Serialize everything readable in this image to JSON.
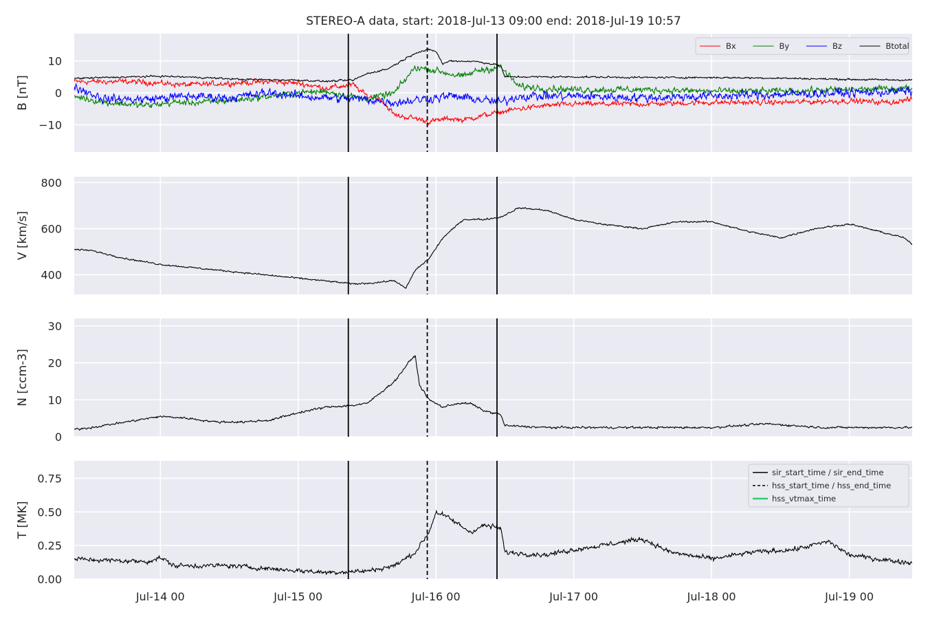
{
  "chart_data": {
    "type": "line",
    "title": "STEREO-A data, start: 2018-Jul-13 09:00  end: 2018-Jul-19 10:57",
    "x_unit": "days since 2018-Jul-13 00:00",
    "xlim": [
      0.375,
      6.456
    ],
    "x_tick_values": [
      1,
      2,
      3,
      4,
      5,
      6
    ],
    "x_tick_labels": [
      "Jul-14 00",
      "Jul-15 00",
      "Jul-16 00",
      "Jul-17 00",
      "Jul-18 00",
      "Jul-19 00"
    ],
    "grid": true,
    "panels": [
      {
        "id": "b",
        "ylabel": "B [nT]",
        "ylim": [
          -18.5,
          18.5
        ],
        "y_ticks": [
          -10,
          0,
          10
        ],
        "y_tick_labels": [
          "−10",
          "0",
          "10"
        ],
        "legend": {
          "placement": "top-right",
          "ncol": 4
        },
        "series": [
          {
            "name": "Bx",
            "color": "#ff0000",
            "noise": 1.2,
            "points": [
              [
                0.375,
                3.5
              ],
              [
                0.8,
                3.5
              ],
              [
                1.2,
                2.5
              ],
              [
                1.5,
                3.0
              ],
              [
                1.8,
                3.5
              ],
              [
                2.0,
                3.0
              ],
              [
                2.2,
                1.5
              ],
              [
                2.4,
                2.5
              ],
              [
                2.5,
                -1.0
              ],
              [
                2.6,
                -2.0
              ],
              [
                2.7,
                -7.0
              ],
              [
                2.85,
                -8.0
              ],
              [
                2.95,
                -9.0
              ],
              [
                3.1,
                -8.0
              ],
              [
                3.2,
                -8.5
              ],
              [
                3.35,
                -7.0
              ],
              [
                3.47,
                -6.0
              ],
              [
                3.6,
                -5.0
              ],
              [
                3.8,
                -4.0
              ],
              [
                4.0,
                -3.5
              ],
              [
                4.5,
                -3.5
              ],
              [
                5.0,
                -3.0
              ],
              [
                5.5,
                -3.0
              ],
              [
                6.0,
                -2.5
              ],
              [
                6.3,
                -3.0
              ],
              [
                6.456,
                -2.0
              ]
            ]
          },
          {
            "name": "By",
            "color": "#008000",
            "noise": 1.5,
            "points": [
              [
                0.375,
                -1.0
              ],
              [
                0.6,
                -3.0
              ],
              [
                0.9,
                -4.0
              ],
              [
                1.1,
                -3.0
              ],
              [
                1.3,
                -3.0
              ],
              [
                1.6,
                -2.0
              ],
              [
                1.9,
                -0.5
              ],
              [
                2.0,
                0.0
              ],
              [
                2.2,
                0.5
              ],
              [
                2.5,
                -2.0
              ],
              [
                2.7,
                0.0
              ],
              [
                2.85,
                8.0
              ],
              [
                3.0,
                7.0
              ],
              [
                3.2,
                5.0
              ],
              [
                3.3,
                7.0
              ],
              [
                3.47,
                8.0
              ],
              [
                3.6,
                2.0
              ],
              [
                4.0,
                1.0
              ],
              [
                4.5,
                1.0
              ],
              [
                5.0,
                0.5
              ],
              [
                5.5,
                0.5
              ],
              [
                6.0,
                1.0
              ],
              [
                6.456,
                1.5
              ]
            ]
          },
          {
            "name": "Bz",
            "color": "#0000ff",
            "noise": 2.0,
            "points": [
              [
                0.375,
                2.0
              ],
              [
                0.6,
                -2.0
              ],
              [
                0.9,
                -2.0
              ],
              [
                1.2,
                -1.0
              ],
              [
                1.5,
                -1.5
              ],
              [
                1.8,
                0.0
              ],
              [
                2.0,
                -1.0
              ],
              [
                2.2,
                -1.5
              ],
              [
                2.5,
                -2.0
              ],
              [
                2.7,
                -3.0
              ],
              [
                2.9,
                -2.0
              ],
              [
                3.1,
                -1.0
              ],
              [
                3.3,
                -2.0
              ],
              [
                3.47,
                -3.0
              ],
              [
                3.6,
                -1.0
              ],
              [
                4.0,
                -1.0
              ],
              [
                4.5,
                -1.5
              ],
              [
                5.0,
                -1.0
              ],
              [
                5.5,
                -0.5
              ],
              [
                6.0,
                0.0
              ],
              [
                6.456,
                0.5
              ]
            ]
          },
          {
            "name": "Btotal",
            "color": "#000000",
            "noise": 0.4,
            "points": [
              [
                0.375,
                4.5
              ],
              [
                0.6,
                4.8
              ],
              [
                1.0,
                5.2
              ],
              [
                1.3,
                4.8
              ],
              [
                1.6,
                4.2
              ],
              [
                2.0,
                4.0
              ],
              [
                2.2,
                3.6
              ],
              [
                2.4,
                4.0
              ],
              [
                2.5,
                6.0
              ],
              [
                2.65,
                7.5
              ],
              [
                2.75,
                10.0
              ],
              [
                2.85,
                12.5
              ],
              [
                2.95,
                13.5
              ],
              [
                3.0,
                13.0
              ],
              [
                3.05,
                9.0
              ],
              [
                3.1,
                10.0
              ],
              [
                3.3,
                9.8
              ],
              [
                3.47,
                8.5
              ],
              [
                3.5,
                5.0
              ],
              [
                4.0,
                5.0
              ],
              [
                4.5,
                4.8
              ],
              [
                5.0,
                4.8
              ],
              [
                5.5,
                4.6
              ],
              [
                6.0,
                4.2
              ],
              [
                6.456,
                4.0
              ]
            ]
          }
        ]
      },
      {
        "id": "v",
        "ylabel": "V [km/s]",
        "ylim": [
          315,
          825
        ],
        "y_ticks": [
          400,
          600,
          800
        ],
        "y_tick_labels": [
          "400",
          "600",
          "800"
        ],
        "series": [
          {
            "name": "V",
            "color": "#000000",
            "noise": 5,
            "points": [
              [
                0.375,
                510
              ],
              [
                0.5,
                505
              ],
              [
                0.75,
                470
              ],
              [
                1.0,
                445
              ],
              [
                1.25,
                430
              ],
              [
                1.5,
                415
              ],
              [
                1.75,
                400
              ],
              [
                2.0,
                385
              ],
              [
                2.25,
                370
              ],
              [
                2.4,
                360
              ],
              [
                2.55,
                365
              ],
              [
                2.7,
                375
              ],
              [
                2.78,
                340
              ],
              [
                2.85,
                420
              ],
              [
                2.95,
                470
              ],
              [
                3.05,
                560
              ],
              [
                3.2,
                640
              ],
              [
                3.35,
                640
              ],
              [
                3.47,
                650
              ],
              [
                3.6,
                690
              ],
              [
                3.8,
                680
              ],
              [
                4.0,
                640
              ],
              [
                4.2,
                620
              ],
              [
                4.5,
                600
              ],
              [
                4.75,
                630
              ],
              [
                5.0,
                630
              ],
              [
                5.25,
                590
              ],
              [
                5.5,
                560
              ],
              [
                5.75,
                600
              ],
              [
                6.0,
                620
              ],
              [
                6.2,
                590
              ],
              [
                6.4,
                560
              ],
              [
                6.456,
                530
              ]
            ]
          }
        ]
      },
      {
        "id": "n",
        "ylabel": "N [ccm-3]",
        "ylim": [
          0,
          32
        ],
        "y_ticks": [
          0,
          10,
          20,
          30
        ],
        "y_tick_labels": [
          "0",
          "10",
          "20",
          "30"
        ],
        "series": [
          {
            "name": "N",
            "color": "#000000",
            "noise": 0.4,
            "points": [
              [
                0.375,
                2.0
              ],
              [
                0.5,
                2.5
              ],
              [
                0.75,
                4.0
              ],
              [
                1.0,
                5.5
              ],
              [
                1.2,
                5.0
              ],
              [
                1.4,
                4.0
              ],
              [
                1.6,
                4.0
              ],
              [
                1.8,
                4.5
              ],
              [
                2.0,
                6.5
              ],
              [
                2.2,
                8.0
              ],
              [
                2.4,
                8.5
              ],
              [
                2.5,
                9.0
              ],
              [
                2.6,
                12.0
              ],
              [
                2.7,
                15.0
              ],
              [
                2.8,
                20.0
              ],
              [
                2.85,
                22.0
              ],
              [
                2.88,
                14.0
              ],
              [
                2.95,
                10.0
              ],
              [
                3.05,
                8.0
              ],
              [
                3.15,
                9.0
              ],
              [
                3.25,
                9.0
              ],
              [
                3.35,
                7.0
              ],
              [
                3.47,
                6.0
              ],
              [
                3.5,
                3.0
              ],
              [
                3.8,
                2.5
              ],
              [
                4.0,
                2.5
              ],
              [
                4.5,
                2.5
              ],
              [
                5.0,
                2.5
              ],
              [
                5.4,
                3.5
              ],
              [
                5.8,
                2.5
              ],
              [
                6.1,
                2.5
              ],
              [
                6.456,
                2.5
              ]
            ]
          }
        ]
      },
      {
        "id": "t",
        "ylabel": "T [MK]",
        "ylim": [
          0,
          0.88
        ],
        "y_ticks": [
          0.0,
          0.25,
          0.5,
          0.75
        ],
        "y_tick_labels": [
          "0.00",
          "0.25",
          "0.50",
          "0.75"
        ],
        "legend": {
          "placement": "top-right",
          "entries": [
            {
              "label": "sir_start_time / sir_end_time",
              "color": "#000000",
              "dash": "solid"
            },
            {
              "label": "hss_start_time / hss_end_time",
              "color": "#000000",
              "dash": "dashed"
            },
            {
              "label": "hss_vtmax_time",
              "color": "#2ecc71",
              "dash": "solid"
            }
          ]
        },
        "series": [
          {
            "name": "T",
            "color": "#000000",
            "noise": 0.025,
            "points": [
              [
                0.375,
                0.15
              ],
              [
                0.6,
                0.14
              ],
              [
                0.9,
                0.13
              ],
              [
                1.0,
                0.16
              ],
              [
                1.1,
                0.1
              ],
              [
                1.5,
                0.1
              ],
              [
                1.9,
                0.07
              ],
              [
                2.2,
                0.05
              ],
              [
                2.5,
                0.06
              ],
              [
                2.7,
                0.1
              ],
              [
                2.85,
                0.2
              ],
              [
                2.95,
                0.35
              ],
              [
                3.0,
                0.5
              ],
              [
                3.1,
                0.45
              ],
              [
                3.25,
                0.35
              ],
              [
                3.35,
                0.4
              ],
              [
                3.47,
                0.38
              ],
              [
                3.5,
                0.2
              ],
              [
                3.8,
                0.18
              ],
              [
                4.0,
                0.22
              ],
              [
                4.2,
                0.25
              ],
              [
                4.5,
                0.3
              ],
              [
                4.7,
                0.2
              ],
              [
                5.0,
                0.15
              ],
              [
                5.3,
                0.2
              ],
              [
                5.6,
                0.22
              ],
              [
                5.85,
                0.28
              ],
              [
                6.0,
                0.18
              ],
              [
                6.2,
                0.15
              ],
              [
                6.456,
                0.12
              ]
            ]
          }
        ]
      }
    ],
    "event_lines": [
      {
        "x": 2.364,
        "style": "solid",
        "color": "#000000",
        "label": "sir_start_time"
      },
      {
        "x": 2.937,
        "style": "dashed",
        "color": "#000000",
        "label": "hss_start_time"
      },
      {
        "x": 3.443,
        "style": "solid",
        "color": "#000000",
        "label": "sir_end_time"
      }
    ]
  }
}
